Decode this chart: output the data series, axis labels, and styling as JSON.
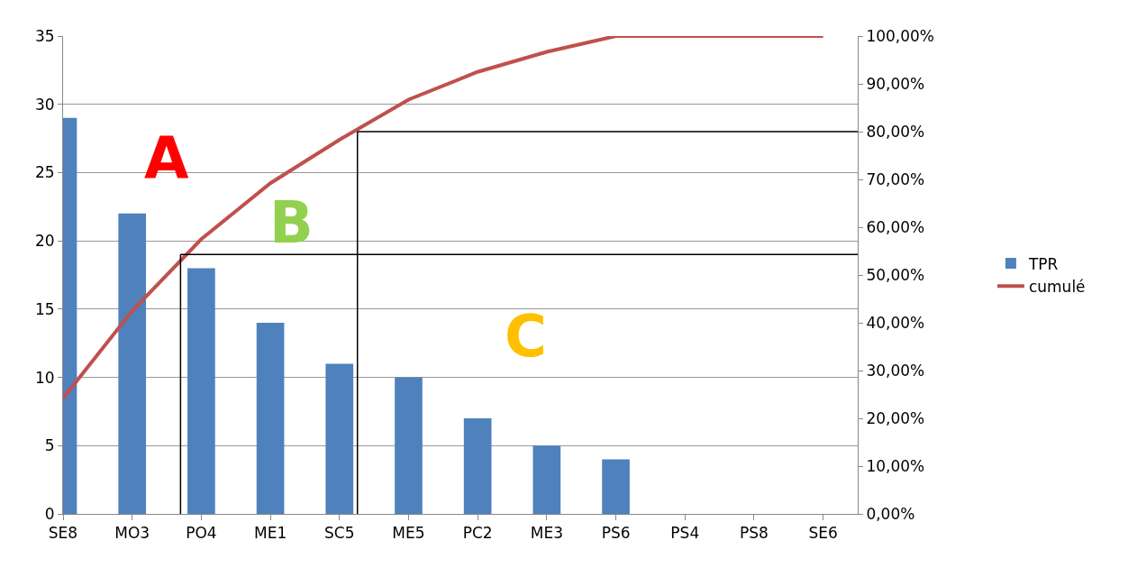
{
  "chart_data": {
    "type": "bar",
    "categories": [
      "SE8",
      "MO3",
      "PO4",
      "ME1",
      "SC5",
      "ME5",
      "PC2",
      "ME3",
      "PS6",
      "PS4",
      "PS8",
      "SE6"
    ],
    "series": [
      {
        "name": "TPR",
        "color": "#4f81bd",
        "values": [
          29,
          22,
          18,
          14,
          11,
          10,
          7,
          5,
          4,
          0,
          0,
          0
        ]
      },
      {
        "name": "cumulé",
        "type": "line",
        "axis": "y2",
        "color": "#c0504d",
        "marker": "none",
        "values": [
          24.2,
          42.5,
          57.5,
          69.2,
          78.3,
          86.7,
          92.5,
          96.7,
          100,
          100,
          100,
          100
        ]
      }
    ],
    "ylim": [
      0,
      35
    ],
    "yticks": [
      0,
      5,
      10,
      15,
      20,
      25,
      30,
      35
    ],
    "y2lim": [
      0,
      100
    ],
    "y2ticks": [
      {
        "value": 0,
        "label": "0,00%"
      },
      {
        "value": 10,
        "label": "10,00%"
      },
      {
        "value": 20,
        "label": "20,00%"
      },
      {
        "value": 30,
        "label": "30,00%"
      },
      {
        "value": 40,
        "label": "40,00%"
      },
      {
        "value": 50,
        "label": "50,00%"
      },
      {
        "value": 60,
        "label": "60,00%"
      },
      {
        "value": 70,
        "label": "70,00%"
      },
      {
        "value": 80,
        "label": "80,00%"
      },
      {
        "value": 90,
        "label": "90,00%"
      },
      {
        "value": 100,
        "label": "100,00%"
      }
    ],
    "ref_lines": [
      {
        "axis": "y",
        "value": 19,
        "color": "#000000"
      },
      {
        "axis": "y2",
        "value": 80,
        "color": "#000000"
      }
    ],
    "annotations": [
      "A",
      "B",
      "C"
    ],
    "grid": "y",
    "legend": "right"
  }
}
